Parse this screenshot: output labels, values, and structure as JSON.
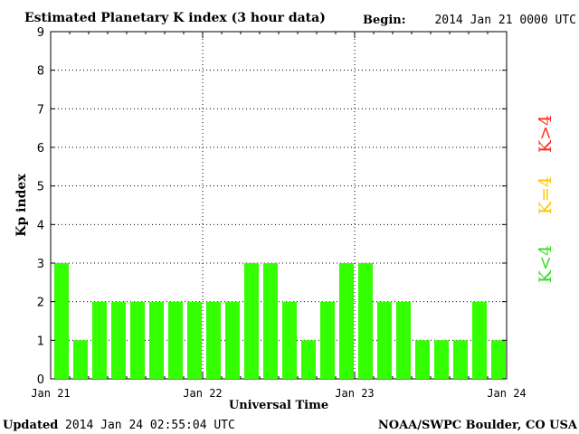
{
  "title": "Estimated Planetary K index (3 hour data)",
  "begin_label": "Begin:",
  "begin_value": "2014 Jan 21 0000 UTC",
  "updated_label": "Updated",
  "updated_value": "2014 Jan 24 02:55:04 UTC",
  "source": "NOAA/SWPC Boulder, CO USA",
  "legend": [
    {
      "label": "K>4",
      "color": "#ff2a1a"
    },
    {
      "label": "K=4",
      "color": "#ffc400"
    },
    {
      "label": "K<4",
      "color": "#33dd22"
    }
  ],
  "chart_data": {
    "type": "bar",
    "title": "Estimated Planetary K index (3 hour data)",
    "xlabel": "Universal Time",
    "ylabel": "Kp index",
    "ylim": [
      0,
      9
    ],
    "yticks": [
      "0",
      "1",
      "2",
      "3",
      "4",
      "5",
      "6",
      "7",
      "8",
      "9"
    ],
    "x_tick_labels": [
      "Jan 21",
      "Jan 22",
      "Jan 23",
      "Jan 24"
    ],
    "bars_per_day": 8,
    "values": [
      3,
      1,
      2,
      2,
      2,
      2,
      2,
      2,
      2,
      2,
      3,
      3,
      2,
      1,
      2,
      3,
      3,
      2,
      2,
      1,
      1,
      1,
      2,
      1
    ],
    "bar_color": "#33ff00",
    "grid": "dotted",
    "legend_position": "right"
  }
}
